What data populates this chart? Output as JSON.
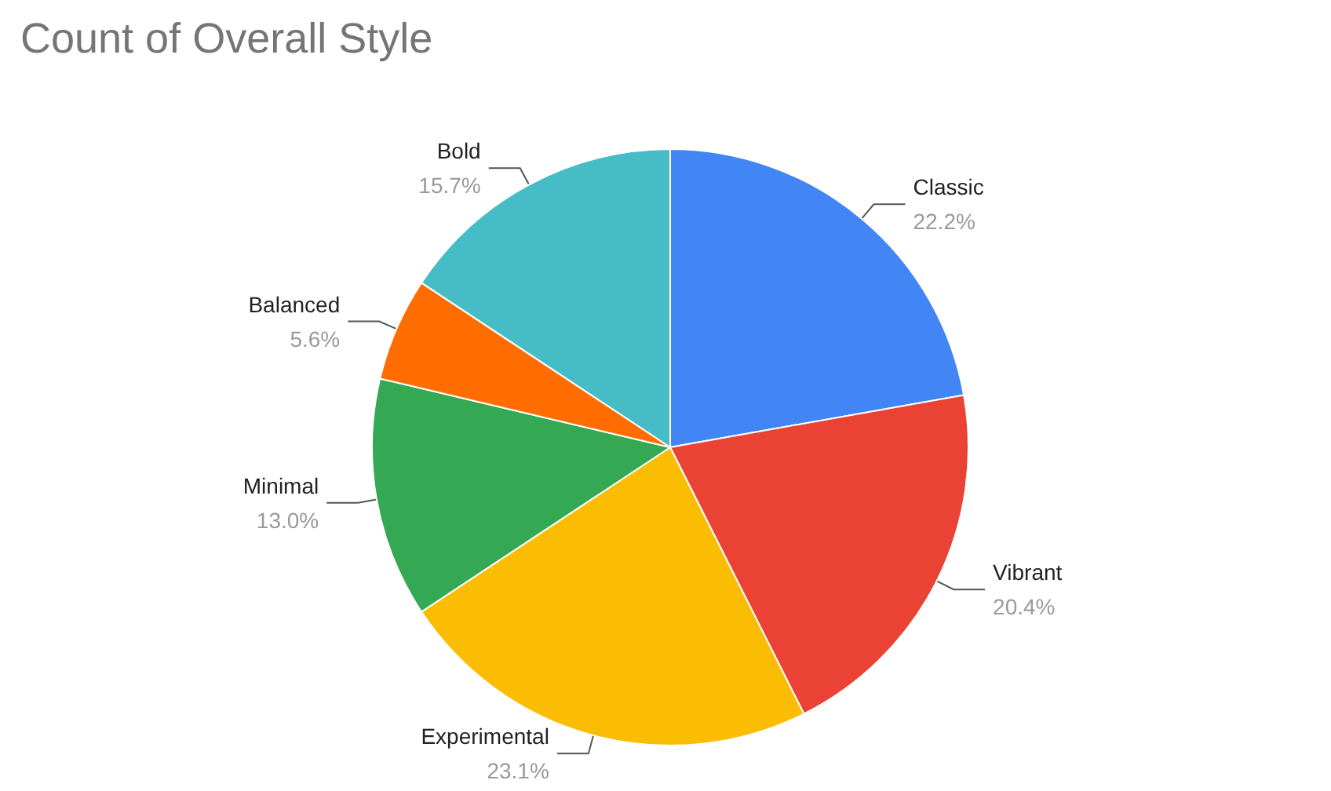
{
  "chart_data": {
    "type": "pie",
    "title": "Count of Overall Style",
    "categories": [
      "Classic",
      "Vibrant",
      "Experimental",
      "Minimal",
      "Balanced",
      "Bold"
    ],
    "values": [
      22.2,
      20.4,
      23.1,
      13.0,
      5.6,
      15.7
    ],
    "value_labels": [
      "22.2%",
      "20.4%",
      "23.1%",
      "13.0%",
      "5.6%",
      "15.7%"
    ],
    "colors": [
      "#4285f4",
      "#ea4335",
      "#fbbc04",
      "#34a853",
      "#ff6d01",
      "#46bdc6"
    ],
    "legend": false
  }
}
